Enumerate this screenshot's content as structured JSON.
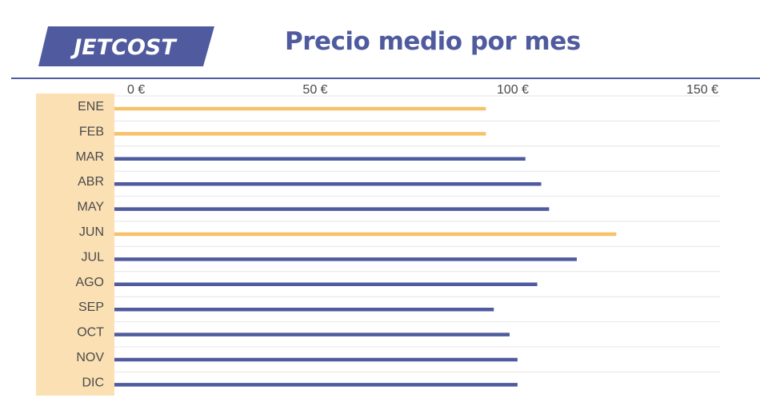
{
  "brand": {
    "name": "JETCOST"
  },
  "colors": {
    "brand_blue": "#4f5b9e",
    "highlight_orange": "#f6c16a",
    "label_band": "#fbe0b4",
    "grid": "#e4e4e4",
    "axis_text": "#4a4a4a"
  },
  "chart_data": {
    "type": "bar",
    "orientation": "horizontal",
    "title": "Precio medio por mes",
    "xlabel": "",
    "ylabel": "",
    "xlim": [
      0,
      150
    ],
    "x_ticks": [
      "0 €",
      "50 €",
      "100 €",
      "150 €"
    ],
    "x_tick_values": [
      0,
      50,
      100,
      150
    ],
    "x_axis_position": "top",
    "grid": true,
    "legend": "none",
    "categories": [
      "ENE",
      "FEB",
      "MAR",
      "ABR",
      "MAY",
      "JUN",
      "JUL",
      "AGO",
      "SEP",
      "OCT",
      "NOV",
      "DIC"
    ],
    "values": [
      94,
      94,
      104,
      108,
      110,
      127,
      117,
      107,
      96,
      100,
      102,
      102
    ],
    "highlighted": [
      "ENE",
      "FEB",
      "JUN"
    ],
    "unit": "€"
  }
}
